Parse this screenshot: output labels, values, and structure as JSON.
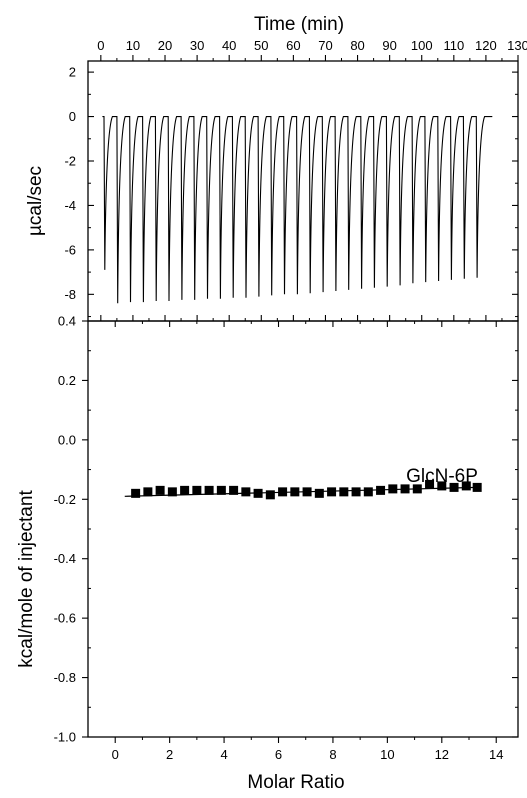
{
  "chart_data": [
    {
      "type": "line",
      "panel": "top",
      "xlabel": "Time (min)",
      "ylabel": "µcal/sec",
      "xlim": [
        -4,
        130
      ],
      "ylim": [
        -9.2,
        2.5
      ],
      "x_ticks": [
        0,
        10,
        20,
        30,
        40,
        50,
        60,
        70,
        80,
        90,
        100,
        110,
        120,
        130
      ],
      "y_ticks": [
        2,
        0,
        -2,
        -4,
        -6,
        -8
      ],
      "x_axis_position": "top",
      "baseline": 0,
      "injection_times": [
        1,
        5,
        9,
        13,
        17,
        21,
        25,
        29,
        33,
        37,
        41,
        45,
        49,
        53,
        57,
        61,
        65,
        69,
        73,
        77,
        81,
        85,
        89,
        93,
        97,
        101,
        105,
        109,
        113,
        117
      ],
      "peak_minima": [
        -6.9,
        -8.4,
        -8.35,
        -8.35,
        -8.3,
        -8.3,
        -8.25,
        -8.25,
        -8.2,
        -8.2,
        -8.15,
        -8.15,
        -8.1,
        -8.05,
        -8.0,
        -8.0,
        -7.95,
        -7.9,
        -7.85,
        -7.8,
        -7.75,
        -7.7,
        -7.65,
        -7.6,
        -7.5,
        -7.45,
        -7.4,
        -7.35,
        -7.3,
        -7.25
      ],
      "baseline_end": 122,
      "series": [
        {
          "values": []
        }
      ]
    },
    {
      "type": "scatter",
      "panel": "bottom",
      "xlabel": "Molar Ratio",
      "ylabel": "kcal/mole of injectant",
      "annotation": "GlcN-6P",
      "xlim": [
        -1,
        14.8
      ],
      "ylim": [
        -1.0,
        0.4
      ],
      "x_ticks": [
        0,
        2,
        4,
        6,
        8,
        10,
        12,
        14
      ],
      "y_ticks": [
        0.4,
        0.2,
        0.0,
        -0.2,
        -0.4,
        -0.6,
        -0.8,
        -1.0
      ],
      "y_tick_labels": [
        "0.4",
        "0.2",
        "0.0",
        "-0.2",
        "-0.4",
        "-0.6",
        "-0.8",
        "-1.0"
      ],
      "x": [
        0.75,
        1.2,
        1.65,
        2.1,
        2.55,
        3.0,
        3.45,
        3.9,
        4.35,
        4.8,
        5.25,
        5.7,
        6.15,
        6.6,
        7.05,
        7.5,
        7.95,
        8.4,
        8.85,
        9.3,
        9.75,
        10.2,
        10.65,
        11.1,
        11.55,
        12.0,
        12.45,
        12.9,
        13.3
      ],
      "y": [
        -0.18,
        -0.175,
        -0.17,
        -0.175,
        -0.17,
        -0.17,
        -0.17,
        -0.17,
        -0.17,
        -0.175,
        -0.18,
        -0.185,
        -0.175,
        -0.175,
        -0.175,
        -0.18,
        -0.175,
        -0.175,
        -0.175,
        -0.175,
        -0.17,
        -0.165,
        -0.165,
        -0.165,
        -0.15,
        -0.155,
        -0.16,
        -0.155,
        -0.16
      ],
      "fit_line": {
        "x": [
          0.35,
          13.3
        ],
        "y": [
          -0.19,
          -0.16
        ]
      }
    }
  ]
}
